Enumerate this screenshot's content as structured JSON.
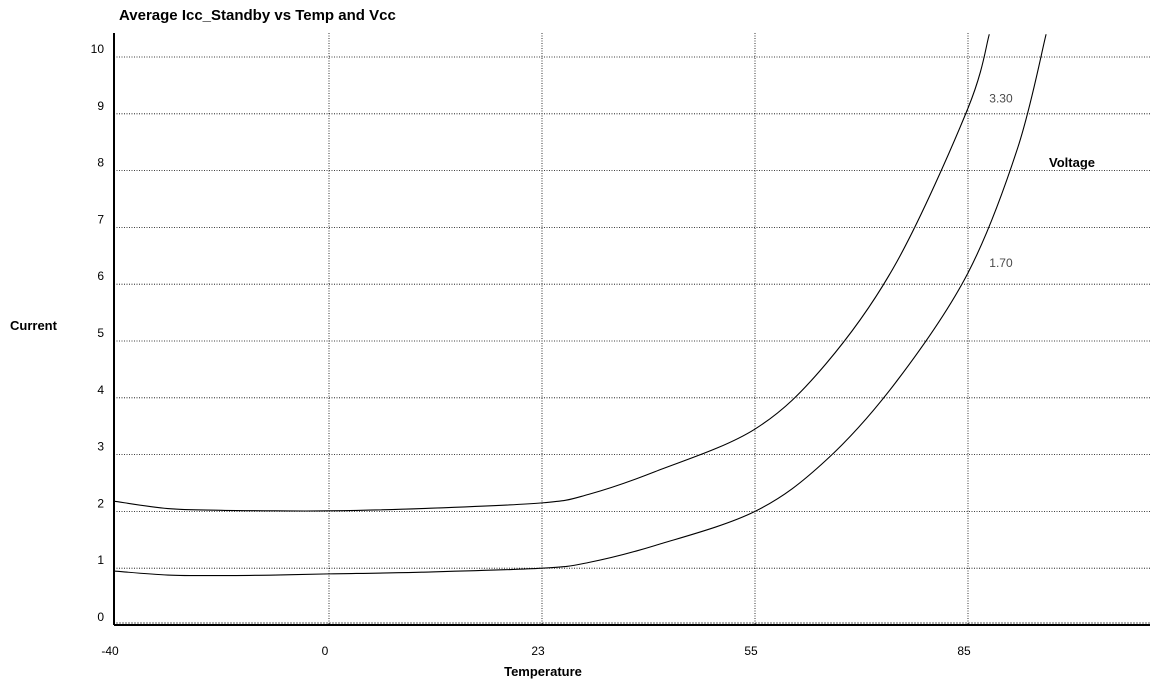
{
  "chart_data": {
    "type": "line",
    "title": "Average Icc_Standby vs Temp and Vcc",
    "xlabel": "Temperature",
    "ylabel": "Current",
    "legend_title": "Voltage",
    "x_ticks": [
      "-40",
      "0",
      "23",
      "55",
      "85"
    ],
    "y_ticks": [
      0,
      1,
      2,
      3,
      4,
      5,
      6,
      7,
      8,
      9,
      10
    ],
    "ylim": [
      0,
      10
    ],
    "grid": true,
    "series": [
      {
        "name": "3.30",
        "points": [
          [
            -40,
            2.18
          ],
          [
            -30,
            2.05
          ],
          [
            -20,
            2.02
          ],
          [
            -10,
            2.01
          ],
          [
            0,
            2.01
          ],
          [
            10,
            2.05
          ],
          [
            23,
            2.15
          ],
          [
            30,
            2.3
          ],
          [
            40,
            2.7
          ],
          [
            55,
            3.45
          ],
          [
            65,
            4.6
          ],
          [
            75,
            6.4
          ],
          [
            85,
            9.1
          ],
          [
            88,
            10.4
          ]
        ],
        "label_at": [
          88,
          9.2
        ]
      },
      {
        "name": "1.70",
        "points": [
          [
            -40,
            0.95
          ],
          [
            -30,
            0.88
          ],
          [
            -20,
            0.87
          ],
          [
            -10,
            0.88
          ],
          [
            0,
            0.9
          ],
          [
            10,
            0.93
          ],
          [
            23,
            1.0
          ],
          [
            30,
            1.1
          ],
          [
            40,
            1.4
          ],
          [
            55,
            2.0
          ],
          [
            65,
            2.9
          ],
          [
            75,
            4.3
          ],
          [
            85,
            6.2
          ],
          [
            92,
            8.4
          ],
          [
            96,
            10.4
          ]
        ],
        "label_at": [
          88,
          6.3
        ]
      }
    ]
  }
}
